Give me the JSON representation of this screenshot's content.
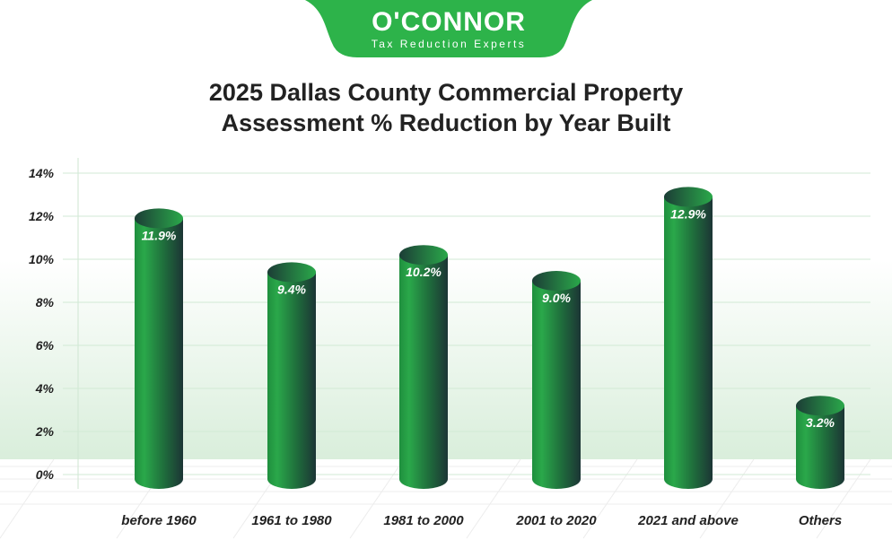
{
  "logo": {
    "name": "O'CONNOR",
    "tagline": "Tax Reduction Experts",
    "color": "#2db34a"
  },
  "chart_data": {
    "type": "bar",
    "title_line1": "2025 Dallas County Commercial Property",
    "title_line2": "Assessment % Reduction by Year Built",
    "categories": [
      "before 1960",
      "1961 to 1980",
      "1981 to 2000",
      "2001 to 2020",
      "2021 and above",
      "Others"
    ],
    "values": [
      11.9,
      9.4,
      10.2,
      9.0,
      12.9,
      3.2
    ],
    "data_labels": [
      "11.9%",
      "9.4%",
      "10.2%",
      "9.0%",
      "12.9%",
      "3.2%"
    ],
    "yticks": [
      "0%",
      "2%",
      "4%",
      "6%",
      "8%",
      "10%",
      "12%",
      "14%"
    ],
    "ylim": [
      0,
      14
    ],
    "xlabel": "",
    "ylabel": "",
    "grid": true,
    "bar_style": "3d cylinder",
    "bar_colors": {
      "light": "#2aa84a",
      "dark": "#1c3535"
    }
  }
}
